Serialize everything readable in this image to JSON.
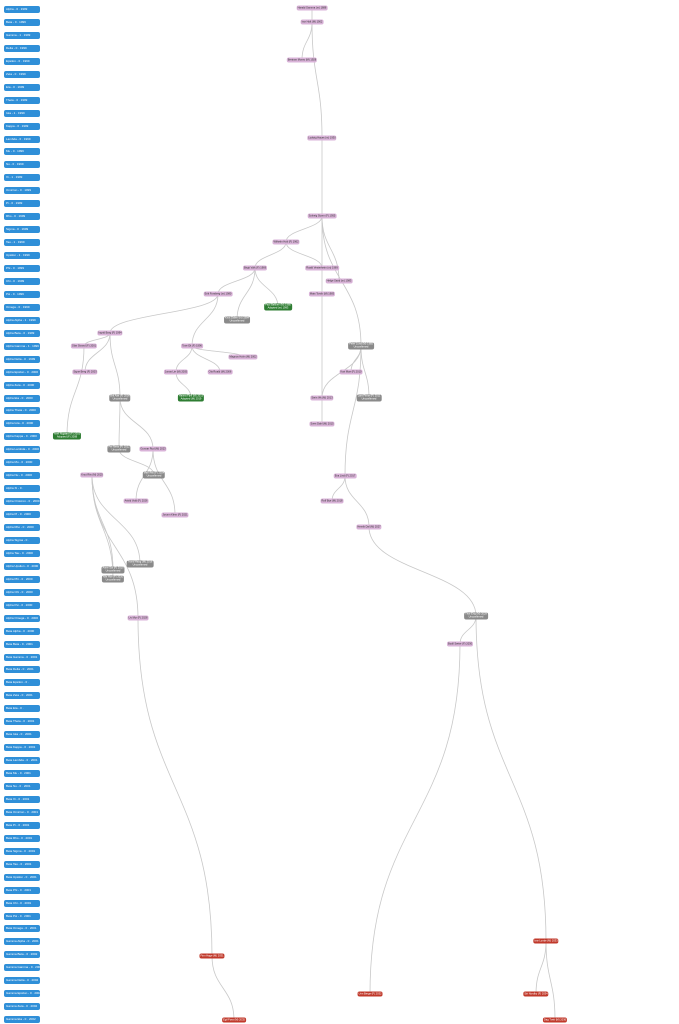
{
  "timeline": [
    "Alpha - 0 · 1999",
    "Beta - 0 · 1999",
    "Gamma - 1 · 1999",
    "Delta - 0 · 1999",
    "Epsilon - 0 · 1999",
    "Zeta - 0 · 1999",
    "Eta - 0 · 1999",
    "Theta - 0 · 1999",
    "Iota - 1 · 1999",
    "Kappa - 0 · 1999",
    "Lambda - 0 · 1999",
    "Mu - 0 · 1999",
    "Nu - 0 · 1999",
    "Xi - 1 · 1999",
    "Omicron - 0 · 1999",
    "Pi - 0 · 1999",
    "Rho - 0 · 1999",
    "Sigma - 0 · 1999",
    "Tau - 1 · 1999",
    "Upsilon - 1 · 1999",
    "Phi - 0 · 1999",
    "Chi - 0 · 1999",
    "Psi - 0 · 1999",
    "Omega - 0 · 1999",
    "Alpha Alpha - 1 · 1999",
    "Alpha Beta - 0 · 1999",
    "Alpha Gamma - 1 · 1999",
    "Alpha Delta - 0 · 1999",
    "Alpha Epsilon - 0 · 2000",
    "Alpha Zeta - 0 · 2000",
    "Alpha Eta - 0 · 2000",
    "Alpha Theta - 0 · 2000",
    "Alpha Iota - 0 · 2000",
    "Alpha Kappa - 0 · 2000",
    "Alpha Lambda - 0 · 2000",
    "Alpha Mu - 0 · 2000",
    "Alpha Nu - 0 · 2000",
    "Alpha Xi - 0 · ",
    "Alpha Omicron - 0 · 2000",
    "Alpha Pi - 0 · 2000",
    "Alpha Rho - 0 · 2000",
    "Alpha Sigma - 0 · ",
    "Alpha Tau - 0 · 2000",
    "Alpha Upsilon - 0 · 2000",
    "Alpha Phi - 0 · 2000",
    "Alpha Chi - 0 · 2000",
    "Alpha Psi - 0 · 2000",
    "Alpha Omega - 0 · 2000",
    "Beta Alpha - 0 · 2000",
    "Beta Beta - 0 · 2001",
    "Beta Gamma - 0 · 2001",
    "Beta Delta - 0 · 2001",
    "Beta Epsilon - 0 · ",
    "Beta Zeta - 0 · 2001",
    "Beta Eta - 0 · ",
    "Beta Theta - 0 · 2001",
    "Beta Iota - 0 · 2001",
    "Beta Kappa - 0 · 2001",
    "Beta Lambda - 0 · 2001",
    "Beta Mu - 0 · 2001",
    "Beta Nu - 0 · 2001",
    "Beta Xi - 0 · 2001",
    "Beta Omicron - 0 · 2001",
    "Beta Pi - 0 · 2001",
    "Beta Rho - 0 · 2001",
    "Beta Sigma - 0 · 2001",
    "Beta Tau - 0 · 2001",
    "Beta Upsilon - 0 · 2001",
    "Beta Phi - 0 · 2001",
    "Beta Chi - 0 · 2001",
    "Beta Psi - 0 · 2001",
    "Beta Omega - 0 · 2001",
    "Gamma Alpha - 0 · 2001",
    "Gamma Beta - 0 · 2002",
    "Gamma Gamma - 0 · 2002",
    "Gamma Delta - 0 · 2002",
    "Gamma Epsilon - 0 · 2002",
    "Gamma Zeta - 0 · 2002",
    "Gamma Eta - 0 · 2002"
  ],
  "nodes": [
    {
      "id": "n1",
      "label": "Harald Gamma (m) 1888",
      "type": "purple"
    },
    {
      "id": "n2",
      "label": "Ivor Holt (M) 1902",
      "type": "purple"
    },
    {
      "id": "n3",
      "label": "Bertram Munro (M) 1928",
      "type": "purple"
    },
    {
      "id": "n4",
      "label": "Ludwig Hayes (m) 1930",
      "type": "purple"
    },
    {
      "id": "n5",
      "label": "Solveig Storm (F) 1955",
      "type": "purple"
    },
    {
      "id": "n6",
      "label": "Wilhelm Holt (F) 1962",
      "type": "purple"
    },
    {
      "id": "n7",
      "label": "Birgit Volk (F) 1969",
      "type": "purple"
    },
    {
      "id": "n8",
      "label": "Roald Vesterheim (m) 1969",
      "type": "purple"
    },
    {
      "id": "n9",
      "label": "Erik Forsberg (m) 1980",
      "type": "purple"
    },
    {
      "id": "n10",
      "label": "Helge Sand (m) 1983",
      "type": "purple"
    },
    {
      "id": "n11",
      "label": "Knut Dalen (m) 1984",
      "type": "gray",
      "sub": "Unconfirmed"
    },
    {
      "id": "n12",
      "label": "Paul Bakken (M) 1980",
      "type": "green",
      "sub": "Adopted (m) 1993"
    },
    {
      "id": "n13",
      "label": "Mats Torvik (M) 1983",
      "type": "purple"
    },
    {
      "id": "n14",
      "label": "Peter Lund (M) 1985",
      "type": "gray",
      "sub": "Unconfirmed"
    },
    {
      "id": "n15",
      "label": "Ingrid Borg (F) 1994",
      "type": "purple"
    },
    {
      "id": "n16",
      "label": "Tove Ek (F) 1996",
      "type": "purple"
    },
    {
      "id": "n17",
      "label": "Olav Strand (F) 2001",
      "type": "purple"
    },
    {
      "id": "n18",
      "label": "Magnus Holm (M) 2002",
      "type": "purple"
    },
    {
      "id": "n19",
      "label": "Axel Nygaard (F) 2003",
      "type": "green",
      "sub": "Adopted (F) 2008"
    },
    {
      "id": "n20",
      "label": "Signe Berg (F) 2003",
      "type": "purple"
    },
    {
      "id": "n21",
      "label": "Jonas Lie (M) 2005",
      "type": "purple"
    },
    {
      "id": "n22",
      "label": "Ola Roald (M) 2006",
      "type": "purple"
    },
    {
      "id": "n23",
      "label": "Brit Aas (F) 2009",
      "type": "gray",
      "sub": "Unconfirmed"
    },
    {
      "id": "n24",
      "label": "Kari Moe (F) 2010",
      "type": "purple"
    },
    {
      "id": "n25",
      "label": "Lars Finne (F) 2011",
      "type": "gray",
      "sub": "Unconfirmed"
    },
    {
      "id": "n26",
      "label": "Stein Vik (M) 2013",
      "type": "purple"
    },
    {
      "id": "n27",
      "label": "Hanna Fjell (M) 2013",
      "type": "green",
      "sub": "Adopted (M) 2019"
    },
    {
      "id": "n28",
      "label": "Sven Dahl (M) 2015",
      "type": "purple"
    },
    {
      "id": "n29",
      "label": "Trond Haug (M) 2016",
      "type": "gray",
      "sub": "Unconfirmed"
    },
    {
      "id": "n30",
      "label": "Eva Lind (F) 2017",
      "type": "purple"
    },
    {
      "id": "n31",
      "label": "Rolf Bye (M) 2018",
      "type": "purple"
    },
    {
      "id": "n32",
      "label": "Anne Sol (F) 2019",
      "type": "gray",
      "sub": "Unconfirmed"
    },
    {
      "id": "n33",
      "label": "Nils Hov (F) 2020",
      "type": "gray",
      "sub": "Unconfirmed"
    },
    {
      "id": "n34",
      "label": "Jorunn Klem (F) 2021",
      "type": "purple"
    },
    {
      "id": "n35",
      "label": "Per Ness (F) 2022",
      "type": "gray",
      "sub": "Unconfirmed"
    },
    {
      "id": "n36",
      "label": "Gunnar Rud (M) 2023",
      "type": "purple"
    },
    {
      "id": "n37",
      "label": "Mari Ask (F) 2024",
      "type": "gray",
      "sub": "Unconfirmed"
    },
    {
      "id": "n38",
      "label": "Knut Riis (M) 2025",
      "type": "purple"
    },
    {
      "id": "n39",
      "label": "Astrid Vold (F) 2026",
      "type": "purple"
    },
    {
      "id": "n40",
      "label": "Henrik Dal (M) 2027",
      "type": "purple"
    },
    {
      "id": "n41",
      "label": "Liv Myr (F) 2028",
      "type": "purple"
    },
    {
      "id": "n42",
      "label": "Thor Eng (M) 2029",
      "type": "gray",
      "sub": "Unconfirmed"
    },
    {
      "id": "n43",
      "label": "Bodil Sæter (F) 2030",
      "type": "purple"
    },
    {
      "id": "n44",
      "label": "Finn Hage (M) 2031",
      "type": "red"
    },
    {
      "id": "n45",
      "label": "Unn Berge (F) 2032",
      "type": "red"
    },
    {
      "id": "n46",
      "label": "Ivar Lunde (M) 2033",
      "type": "red"
    },
    {
      "id": "n47",
      "label": "Siri Nordby (F) 2034",
      "type": "red"
    },
    {
      "id": "n48",
      "label": "Egil Foss (M) 2035",
      "type": "red"
    },
    {
      "id": "n49",
      "label": "Dag Tveit (M) 2036",
      "type": "red"
    }
  ]
}
